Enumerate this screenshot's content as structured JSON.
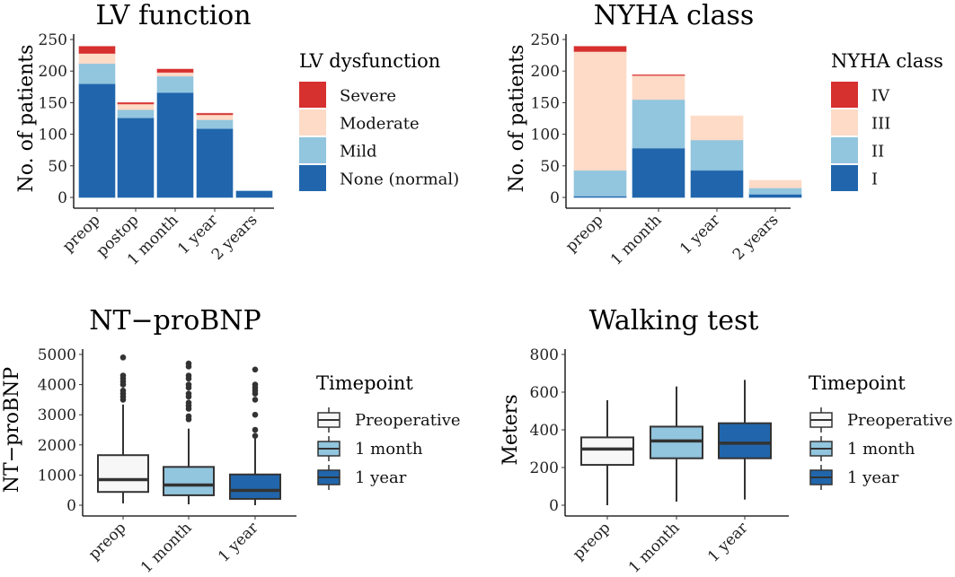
{
  "chart_data": [
    {
      "type": "bar",
      "stacked": true,
      "title": "LV function",
      "xlabel": "",
      "ylabel": "No. of patients",
      "ylim": [
        0,
        250
      ],
      "yticks": [
        0,
        50,
        100,
        150,
        200,
        250
      ],
      "categories": [
        "preop",
        "postop",
        "1 month",
        "1 year",
        "2 years"
      ],
      "legend": {
        "title": "LV dysfunction",
        "position": "right"
      },
      "series": [
        {
          "name": "None (normal)",
          "color": "#2166ac",
          "values": [
            180,
            126,
            166,
            109,
            10
          ]
        },
        {
          "name": "Mild",
          "color": "#92c5de",
          "values": [
            32,
            13,
            26,
            14,
            0
          ]
        },
        {
          "name": "Moderate",
          "color": "#fddbc7",
          "values": [
            16,
            9,
            6,
            8,
            0
          ]
        },
        {
          "name": "Severe",
          "color": "#d6302f",
          "values": [
            11,
            2,
            5,
            2,
            0
          ]
        }
      ]
    },
    {
      "type": "bar",
      "stacked": true,
      "title": "NYHA class",
      "xlabel": "",
      "ylabel": "No. of patients",
      "ylim": [
        0,
        250
      ],
      "yticks": [
        0,
        50,
        100,
        150,
        200,
        250
      ],
      "categories": [
        "preop",
        "1 month",
        "1 year",
        "2 years"
      ],
      "legend": {
        "title": "NYHA class",
        "position": "right"
      },
      "series": [
        {
          "name": "I",
          "color": "#2166ac",
          "values": [
            2,
            78,
            43,
            5
          ]
        },
        {
          "name": "II",
          "color": "#92c5de",
          "values": [
            41,
            77,
            48,
            10
          ]
        },
        {
          "name": "III",
          "color": "#fddbc7",
          "values": [
            188,
            38,
            38,
            12
          ]
        },
        {
          "name": "IV",
          "color": "#d6302f",
          "values": [
            8,
            1,
            0,
            0
          ]
        }
      ]
    },
    {
      "type": "box",
      "title": "NT−proBNP",
      "xlabel": "",
      "ylabel": "NT−proBNP",
      "ylim": [
        0,
        5000
      ],
      "yticks": [
        0,
        1000,
        2000,
        3000,
        4000,
        5000
      ],
      "categories": [
        "preop",
        "1 month",
        "1 year"
      ],
      "legend": {
        "title": "Timepoint",
        "position": "right"
      },
      "series": [
        {
          "name": "Preoperative",
          "color": "#f7f7f7",
          "min": 60,
          "q1": 440,
          "median": 850,
          "q3": 1660,
          "max": 3340,
          "outliers": [
            3500,
            3600,
            3700,
            3800,
            4000,
            4100,
            4200,
            4300,
            4900
          ]
        },
        {
          "name": "1 month",
          "color": "#92c5de",
          "min": 30,
          "q1": 330,
          "median": 670,
          "q3": 1270,
          "max": 2540,
          "outliers": [
            2850,
            2950,
            3200,
            3300,
            3400,
            3600,
            3700,
            3900,
            4000,
            4200,
            4300,
            4600,
            4700
          ]
        },
        {
          "name": "1 year",
          "color": "#2166ac",
          "min": 0,
          "q1": 210,
          "median": 490,
          "q3": 1020,
          "max": 2220,
          "outliers": [
            2300,
            2500,
            3000,
            3500,
            3700,
            3800,
            3900,
            4000,
            4500
          ]
        }
      ]
    },
    {
      "type": "box",
      "title": "Walking test",
      "xlabel": "",
      "ylabel": "Meters",
      "ylim": [
        0,
        800
      ],
      "yticks": [
        0,
        200,
        400,
        600,
        800
      ],
      "categories": [
        "preop",
        "1 month",
        "1 year"
      ],
      "legend": {
        "title": "Timepoint",
        "position": "right"
      },
      "series": [
        {
          "name": "Preoperative",
          "color": "#f7f7f7",
          "min": 0,
          "q1": 214,
          "median": 298,
          "q3": 360,
          "max": 557,
          "outliers": []
        },
        {
          "name": "1 month",
          "color": "#92c5de",
          "min": 19,
          "q1": 249,
          "median": 341,
          "q3": 417,
          "max": 630,
          "outliers": []
        },
        {
          "name": "1 year",
          "color": "#2166ac",
          "min": 30,
          "q1": 249,
          "median": 329,
          "q3": 435,
          "max": 665,
          "outliers": []
        }
      ]
    }
  ]
}
